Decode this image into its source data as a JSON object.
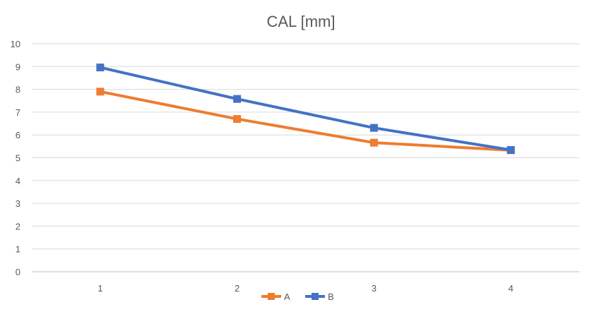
{
  "chart_data": {
    "type": "line",
    "title": "CAL [mm]",
    "xlabel": "",
    "ylabel": "",
    "categories": [
      "1",
      "2",
      "3",
      "4"
    ],
    "ylim": [
      0,
      10
    ],
    "yticks": [
      "0",
      "1",
      "2",
      "3",
      "4",
      "5",
      "6",
      "7",
      "8",
      "9",
      "10"
    ],
    "grid": true,
    "legend_position": "bottom",
    "series": [
      {
        "name": "A",
        "color": "#ED7D31",
        "values": [
          7.9,
          6.7,
          5.66,
          5.33
        ]
      },
      {
        "name": "B",
        "color": "#4472C4",
        "values": [
          8.96,
          7.58,
          6.31,
          5.34
        ]
      }
    ]
  }
}
